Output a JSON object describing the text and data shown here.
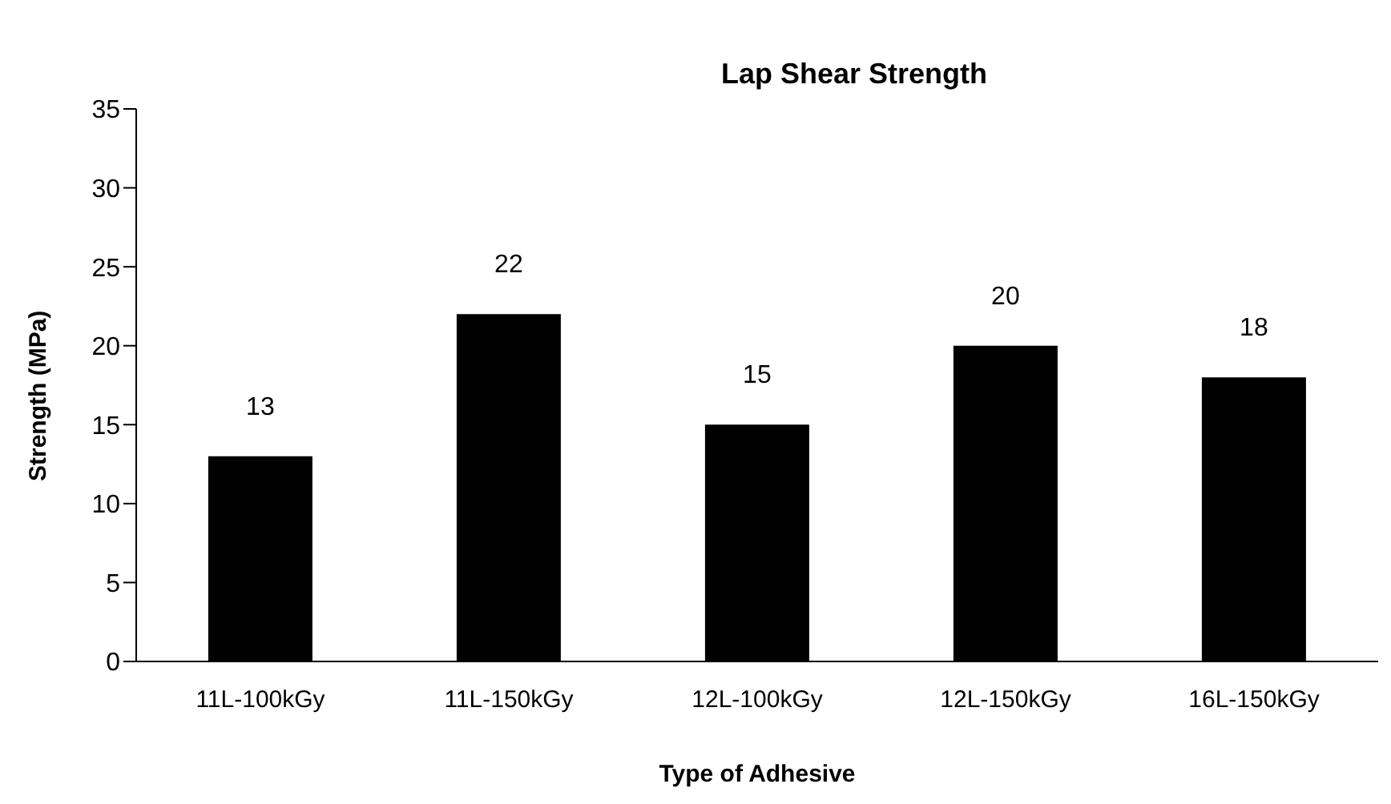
{
  "chart_data": {
    "type": "bar",
    "title": "Lap Shear Strength",
    "xlabel": "Type of Adhesive",
    "ylabel": "Strength (MPa)",
    "categories": [
      "11L-100kGy",
      "11L-150kGy",
      "12L-100kGy",
      "12L-150kGy",
      "16L-150kGy"
    ],
    "values": [
      13,
      22,
      15,
      20,
      18
    ],
    "color": "#000000",
    "ylim": [
      0,
      35
    ],
    "yticks": [
      0,
      5,
      10,
      15,
      20,
      25,
      30,
      35
    ],
    "grid": false,
    "legend": false,
    "data_labels": true
  }
}
